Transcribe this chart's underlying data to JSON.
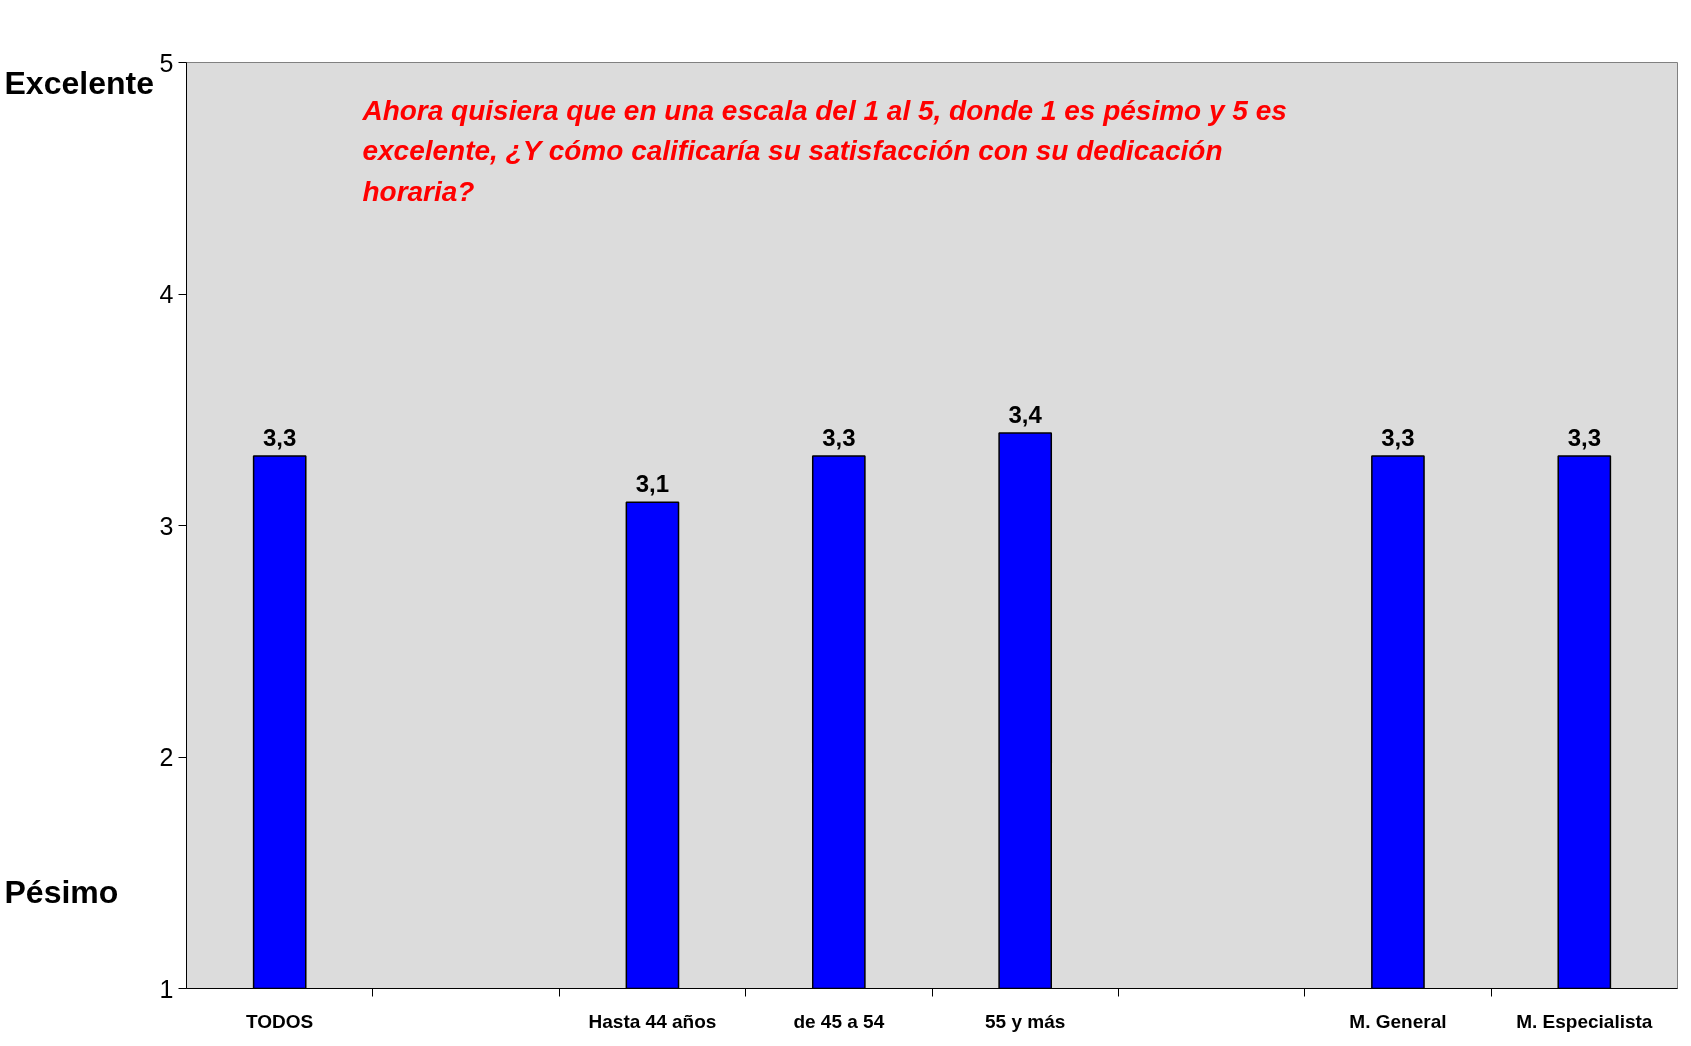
{
  "chart_data": {
    "type": "bar",
    "title": "Ahora quisiera que en una escala del 1 al 5, donde 1 es pésimo y 5 es excelente, ¿Y cómo calificaría su satisfacción con su dedicación horaria?",
    "categories": [
      "TODOS",
      null,
      "Hasta 44 años",
      "de 45 a 54",
      "55 y más",
      null,
      "M. General",
      "M. Especialista"
    ],
    "values": [
      3.3,
      null,
      3.1,
      3.3,
      3.4,
      null,
      3.3,
      3.3
    ],
    "value_labels": [
      "3,3",
      null,
      "3,1",
      "3,3",
      "3,4",
      null,
      "3,3",
      "3,3"
    ],
    "color": "#0000ff",
    "ylim": [
      1,
      5
    ],
    "yticks": [
      1,
      2,
      3,
      4,
      5
    ],
    "grid": false,
    "annotations": [
      "Excelente",
      "Pésimo"
    ]
  }
}
